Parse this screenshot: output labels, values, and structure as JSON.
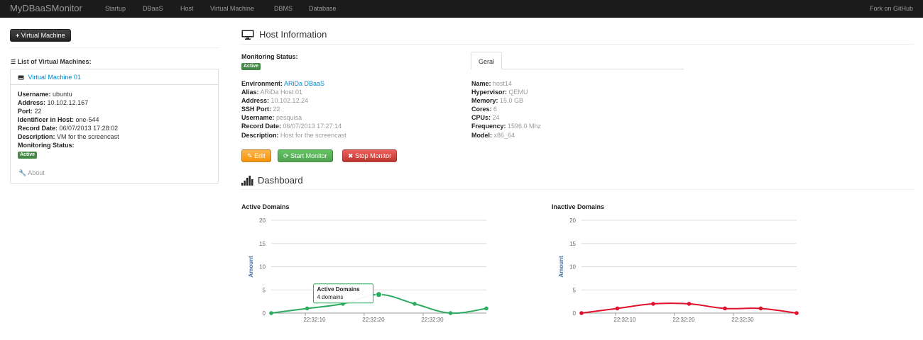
{
  "navbar": {
    "brand": "MyDBaaSMonitor",
    "links": [
      "Startup",
      "DBaaS",
      "Host",
      "Virtual Machine",
      "DBMS",
      "Database"
    ],
    "right_link": "Fork on GitHub"
  },
  "sidebar": {
    "add_button": "Virtual Machine",
    "list_title": "List of Virtual Machines:",
    "vm": {
      "name": "Virtual Machine 01",
      "fields": [
        {
          "label": "Username:",
          "value": "ubuntu"
        },
        {
          "label": "Address:",
          "value": "10.102.12.167"
        },
        {
          "label": "Port:",
          "value": "22"
        },
        {
          "label": "Identificer in Host:",
          "value": "one-544"
        },
        {
          "label": "Record Date:",
          "value": "06/07/2013 17:28:02"
        },
        {
          "label": "Description:",
          "value": "VM for the screencast"
        },
        {
          "label": "Monitoring Status:",
          "value": ""
        }
      ],
      "status_badge": "Active",
      "about": "About"
    }
  },
  "host": {
    "title": "Host Information",
    "monitoring_label": "Monitoring Status:",
    "status_badge": "Active",
    "environment_label": "Environment:",
    "environment_link": "ARiDa DBaaS",
    "details": [
      {
        "label": "Alias:",
        "value": "ARiDa Host 01"
      },
      {
        "label": "Address:",
        "value": "10.102.12.24"
      },
      {
        "label": "SSH Port:",
        "value": "22"
      },
      {
        "label": "Username:",
        "value": "pesquisa"
      },
      {
        "label": "Record Date:",
        "value": "06/07/2013 17:27:14"
      },
      {
        "label": "Description:",
        "value": "Host for the screencast"
      }
    ],
    "tab": "Geral",
    "specs": [
      {
        "label": "Name:",
        "value": "host14"
      },
      {
        "label": "Hypervisor:",
        "value": "QEMU"
      },
      {
        "label": "Memory:",
        "value": "15.0 GB"
      },
      {
        "label": "Cores:",
        "value": "6"
      },
      {
        "label": "CPUs:",
        "value": "24"
      },
      {
        "label": "Frequency:",
        "value": "1596.0 Mhz"
      },
      {
        "label": "Model:",
        "value": "x86_64"
      }
    ],
    "buttons": {
      "edit": "Edit",
      "start": "Start Monitor",
      "stop": "Stop Monitor"
    }
  },
  "dashboard": {
    "title": "Dashboard"
  },
  "chart_data": [
    {
      "type": "line",
      "title": "Active Domains",
      "ylabel": "Amount",
      "ylim": [
        0,
        20
      ],
      "yticks": [
        0,
        5,
        10,
        15,
        20
      ],
      "x_ticks": [
        "22:32:10",
        "22:32:20",
        "22:32:30"
      ],
      "series": [
        {
          "name": "Active Domains",
          "color": "#2aab5e",
          "values": [
            0,
            1,
            2,
            4,
            2,
            0,
            1
          ]
        }
      ],
      "tooltip": {
        "title": "Active Domains",
        "text": "4 domains",
        "point_index": 3
      }
    },
    {
      "type": "line",
      "title": "Inactive Domains",
      "ylabel": "Amount",
      "ylim": [
        0,
        20
      ],
      "yticks": [
        0,
        5,
        10,
        15,
        20
      ],
      "x_ticks": [
        "22:32:10",
        "22:32:20",
        "22:32:30"
      ],
      "series": [
        {
          "name": "Inactive Domains",
          "color": "#e0102b",
          "values": [
            0,
            1,
            2,
            2,
            1,
            1,
            0
          ]
        }
      ]
    }
  ]
}
